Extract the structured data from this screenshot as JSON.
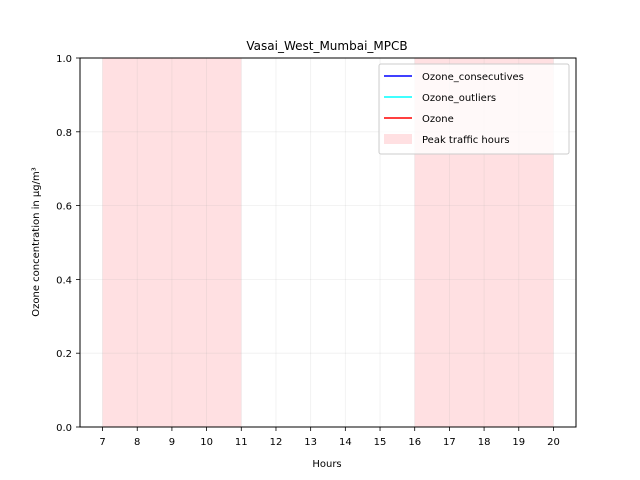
{
  "chart_data": {
    "type": "line",
    "title": "Vasai_West_Mumbai_MPCB",
    "xlabel": "Hours",
    "ylabel": "Ozone concentration in µg/m³",
    "xlim": [
      6.35,
      20.65
    ],
    "ylim": [
      0,
      1
    ],
    "x_ticks": [
      7,
      8,
      9,
      10,
      11,
      12,
      13,
      14,
      15,
      16,
      17,
      18,
      19,
      20
    ],
    "y_ticks": [
      "0.0",
      "0.2",
      "0.4",
      "0.6",
      "0.8",
      "1.0"
    ],
    "grid": true,
    "legend_position": "top-right",
    "series": [
      {
        "name": "Ozone_consecutives",
        "color": "#0000ff",
        "values": []
      },
      {
        "name": "Ozone_outliers",
        "color": "#00ffff",
        "values": []
      },
      {
        "name": "Ozone",
        "color": "#ff0000",
        "values": []
      }
    ],
    "shaded_regions": [
      {
        "name": "Peak traffic hours",
        "x_start": 7,
        "x_end": 11,
        "color": "#ffe0e2"
      },
      {
        "name": "Peak traffic hours",
        "x_start": 16,
        "x_end": 20,
        "color": "#ffe0e2"
      }
    ],
    "legend": [
      {
        "label": "Ozone_consecutives",
        "kind": "line",
        "color": "#0000ff"
      },
      {
        "label": "Ozone_outliers",
        "kind": "line",
        "color": "#00ffff"
      },
      {
        "label": "Ozone",
        "kind": "line",
        "color": "#ff0000"
      },
      {
        "label": "Peak traffic hours",
        "kind": "patch",
        "color": "#ffe0e2"
      }
    ]
  }
}
